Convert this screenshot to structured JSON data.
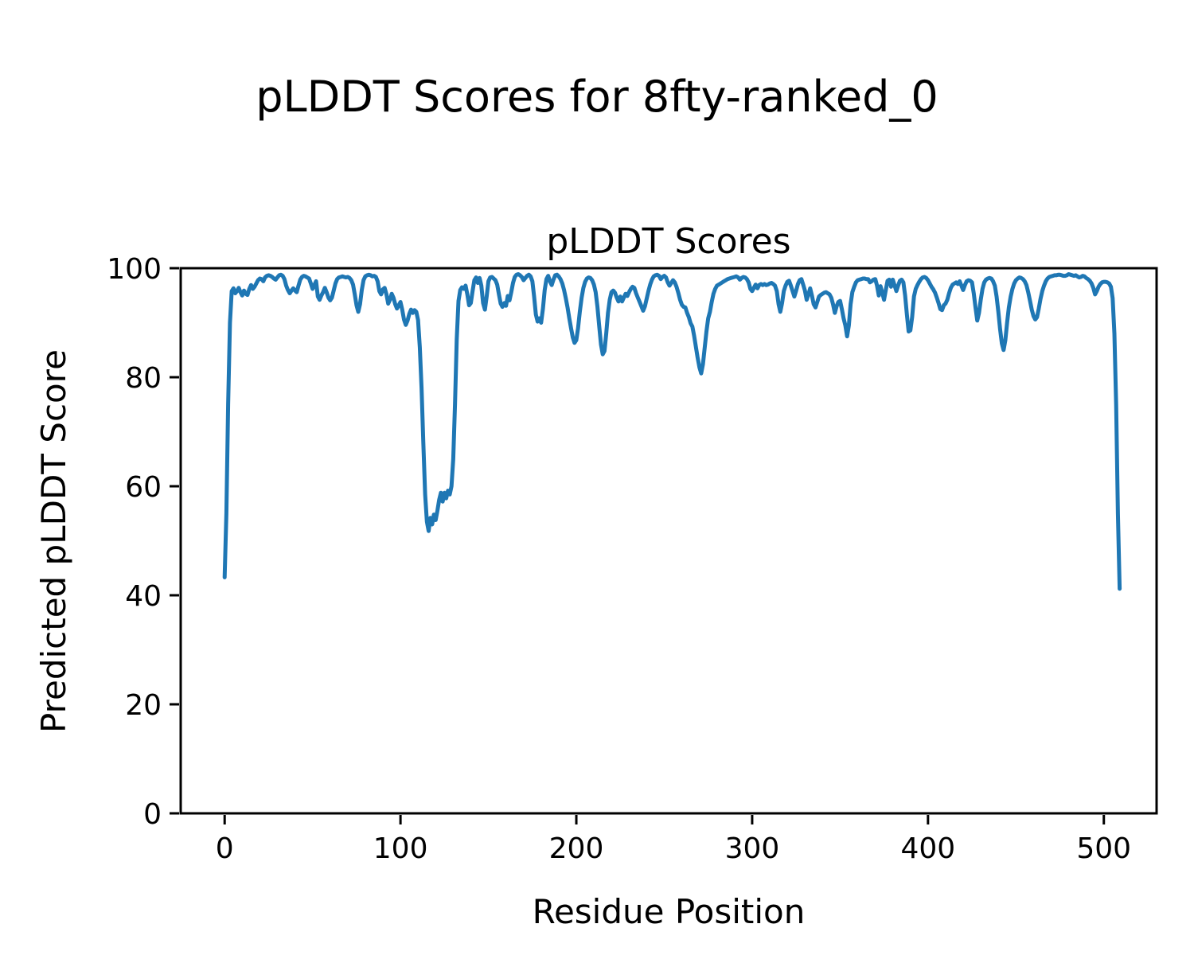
{
  "figure": {
    "suptitle": "pLDDT Scores for 8fty-ranked_0",
    "background": "#ffffff"
  },
  "chart_data": {
    "type": "line",
    "title": "pLDDT Scores",
    "xlabel": "Residue Position",
    "ylabel": "Predicted pLDDT Score",
    "xlim": [
      -25,
      530
    ],
    "ylim": [
      0,
      100
    ],
    "xticks": [
      0,
      100,
      200,
      300,
      400,
      500
    ],
    "yticks": [
      0,
      20,
      40,
      60,
      80,
      100
    ],
    "grid": false,
    "legend": "none",
    "line_color": "#1f77b4",
    "line_width": 5,
    "axis_color": "#000000",
    "series": [
      {
        "name": "pLDDT",
        "x0": 0,
        "dx": 1,
        "values": [
          43.3,
          55,
          75,
          90,
          95.8,
          96.3,
          95.4,
          95.8,
          96.4,
          95.6,
          95.0,
          95.9,
          95.3,
          95.1,
          96.2,
          96.9,
          96.2,
          96.6,
          97.2,
          97.8,
          98.1,
          98.0,
          97.6,
          98.3,
          98.6,
          98.7,
          98.6,
          98.4,
          98.1,
          97.9,
          98.3,
          98.7,
          98.8,
          98.6,
          98.0,
          96.8,
          96.0,
          95.4,
          95.9,
          96.3,
          95.9,
          95.6,
          96.8,
          97.9,
          98.4,
          98.6,
          98.5,
          98.3,
          98.1,
          97.2,
          96.2,
          96.9,
          97.6,
          94.8,
          94.2,
          95.0,
          95.6,
          96.4,
          95.6,
          94.6,
          94.1,
          94.6,
          95.9,
          97.2,
          98.0,
          98.3,
          98.4,
          98.5,
          98.4,
          98.3,
          98.4,
          98.2,
          97.8,
          97.0,
          95.2,
          93.2,
          92.0,
          93.4,
          96.0,
          97.8,
          98.5,
          98.7,
          98.8,
          98.7,
          98.5,
          98.6,
          98.4,
          97.6,
          95.8,
          95.2,
          96.1,
          96.4,
          95.2,
          93.5,
          94.2,
          95.3,
          94.6,
          93.4,
          92.6,
          93.2,
          93.8,
          92.4,
          90.6,
          89.6,
          90.4,
          91.6,
          92.4,
          91.8,
          92.3,
          92.0,
          90.5,
          85.5,
          78.0,
          68.0,
          58.5,
          53.5,
          51.8,
          54.2,
          53.0,
          54.8,
          53.8,
          55.5,
          57.5,
          58.8,
          57.2,
          58.8,
          57.8,
          59.2,
          58.5,
          60.0,
          65.0,
          75.0,
          87.0,
          94.0,
          96.0,
          96.5,
          96.2,
          96.8,
          95.2,
          93.2,
          93.6,
          95.8,
          97.8,
          98.3,
          97.3,
          98.2,
          96.8,
          93.6,
          92.4,
          94.8,
          97.6,
          98.3,
          98.4,
          98.1,
          97.8,
          97.0,
          95.2,
          93.5,
          92.9,
          93.6,
          93.1,
          94.9,
          94.1,
          95.6,
          97.3,
          98.4,
          98.8,
          98.9,
          98.7,
          98.4,
          97.8,
          98.2,
          98.6,
          98.8,
          98.5,
          97.6,
          94.8,
          91.5,
          90.2,
          90.8,
          90.0,
          92.6,
          96.0,
          98.0,
          98.6,
          97.6,
          96.9,
          97.9,
          98.7,
          98.8,
          98.5,
          98.0,
          97.2,
          96.0,
          94.5,
          92.8,
          90.8,
          89.0,
          87.3,
          86.3,
          86.8,
          89.0,
          92.0,
          94.6,
          96.4,
          97.5,
          98.1,
          98.3,
          98.2,
          97.8,
          97.0,
          95.6,
          93.0,
          89.5,
          86.0,
          84.2,
          84.8,
          88.0,
          91.8,
          94.2,
          95.6,
          95.9,
          95.5,
          94.6,
          93.9,
          94.8,
          93.9,
          94.6,
          95.3,
          94.9,
          95.6,
          96.2,
          96.6,
          96.4,
          95.4,
          94.6,
          93.8,
          93.0,
          92.2,
          93.0,
          94.4,
          95.8,
          97.0,
          97.9,
          98.5,
          98.7,
          98.8,
          98.6,
          98.0,
          98.4,
          98.6,
          98.3,
          97.4,
          96.8,
          97.3,
          97.8,
          97.4,
          96.6,
          95.5,
          94.2,
          93.3,
          92.9,
          92.8,
          91.8,
          91.0,
          89.9,
          89.3,
          87.6,
          85.6,
          83.6,
          81.8,
          80.7,
          82.4,
          85.4,
          88.4,
          90.8,
          92.0,
          93.8,
          95.3,
          96.2,
          96.8,
          97.0,
          97.2,
          97.4,
          97.6,
          97.8,
          98.0,
          98.1,
          98.2,
          98.3,
          98.4,
          98.5,
          98.3,
          97.9,
          98.2,
          98.4,
          98.3,
          98.0,
          97.4,
          96.2,
          95.8,
          96.4,
          97.0,
          96.3,
          96.9,
          97.1,
          96.9,
          97.1,
          96.9,
          97.0,
          97.2,
          97.3,
          97.1,
          96.8,
          95.8,
          93.4,
          92.0,
          93.6,
          95.8,
          96.8,
          97.5,
          97.7,
          96.8,
          95.8,
          94.8,
          95.9,
          97.1,
          97.8,
          98.0,
          97.0,
          95.9,
          94.2,
          95.2,
          96.3,
          95.0,
          93.4,
          92.8,
          93.8,
          94.8,
          95.1,
          95.3,
          95.5,
          95.6,
          95.4,
          95.2,
          94.6,
          93.4,
          91.8,
          93.0,
          93.8,
          94.0,
          92.5,
          90.8,
          89.5,
          87.5,
          89.5,
          93.4,
          95.6,
          96.6,
          97.4,
          97.8,
          97.9,
          98.0,
          98.1,
          98.1,
          98.0,
          98.0,
          97.4,
          97.6,
          97.9,
          98.0,
          96.8,
          95.0,
          96.7,
          95.5,
          94.2,
          96.0,
          97.7,
          97.9,
          96.6,
          97.9,
          96.8,
          95.8,
          96.8,
          97.7,
          97.9,
          97.4,
          95.0,
          91.5,
          88.4,
          88.6,
          91.0,
          94.8,
          96.2,
          96.9,
          97.5,
          98.0,
          98.3,
          98.4,
          98.2,
          97.8,
          97.2,
          96.6,
          96.1,
          95.5,
          94.6,
          93.6,
          92.5,
          92.3,
          93.2,
          93.5,
          94.2,
          95.4,
          96.4,
          97.0,
          97.2,
          97.4,
          97.1,
          97.6,
          96.8,
          96.0,
          96.9,
          97.6,
          97.8,
          97.7,
          97.4,
          95.4,
          92.8,
          90.4,
          91.8,
          94.2,
          96.2,
          97.4,
          97.9,
          98.1,
          98.2,
          98.1,
          97.6,
          96.8,
          94.8,
          92.0,
          88.8,
          86.2,
          85.0,
          86.8,
          90.0,
          92.8,
          94.8,
          96.2,
          97.2,
          97.8,
          98.1,
          98.3,
          98.2,
          98.0,
          97.6,
          96.9,
          95.6,
          94.0,
          92.4,
          91.2,
          90.6,
          91.0,
          92.6,
          94.4,
          95.8,
          96.8,
          97.6,
          98.1,
          98.4,
          98.5,
          98.6,
          98.7,
          98.7,
          98.8,
          98.8,
          98.7,
          98.6,
          98.6,
          98.7,
          98.9,
          98.8,
          98.7,
          98.6,
          98.7,
          98.5,
          98.3,
          98.4,
          98.6,
          98.5,
          98.2,
          98.0,
          97.7,
          97.2,
          96.4,
          95.2,
          95.8,
          96.6,
          97.1,
          97.4,
          97.5,
          97.5,
          97.4,
          97.2,
          96.6,
          94.5,
          88.0,
          75.0,
          55.0,
          41.2
        ]
      }
    ]
  }
}
